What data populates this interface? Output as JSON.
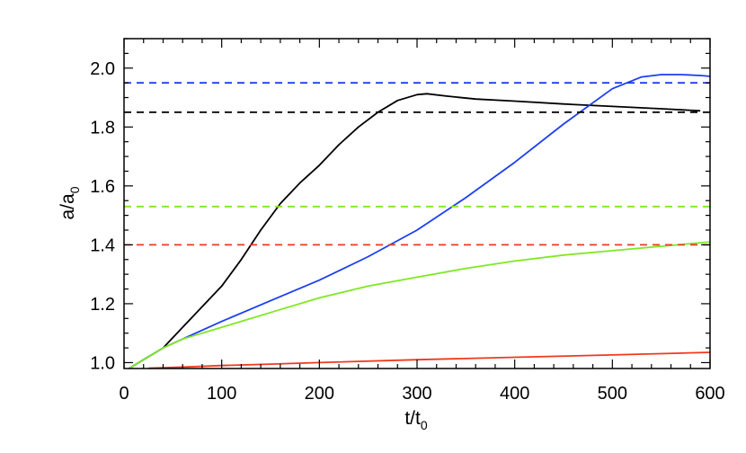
{
  "chart_data": {
    "type": "line",
    "title": "",
    "xlabel": {
      "base": "t/t",
      "sub": "0"
    },
    "ylabel": {
      "base": "a/a",
      "sub": "0"
    },
    "xlim": [
      0,
      600
    ],
    "ylim": [
      0.98,
      2.1
    ],
    "x_ticks": [
      0,
      100,
      200,
      300,
      400,
      500,
      600
    ],
    "y_ticks": [
      1.0,
      1.2,
      1.4,
      1.6,
      1.8,
      2.0
    ],
    "y_tick_labels": [
      "1.0",
      "1.2",
      "1.4",
      "1.6",
      "1.8",
      "2.0"
    ],
    "grid": false,
    "legend": "none",
    "series": [
      {
        "color": "#000000",
        "style": "solid",
        "x": [
          5,
          20,
          40,
          60,
          80,
          100,
          120,
          140,
          160,
          180,
          200,
          220,
          240,
          260,
          280,
          300,
          310,
          330,
          360,
          400,
          450,
          500,
          550,
          590
        ],
        "y": [
          0.98,
          1.01,
          1.05,
          1.12,
          1.19,
          1.26,
          1.35,
          1.45,
          1.54,
          1.61,
          1.67,
          1.74,
          1.8,
          1.85,
          1.89,
          1.91,
          1.913,
          1.905,
          1.895,
          1.888,
          1.878,
          1.87,
          1.862,
          1.855
        ]
      },
      {
        "color": "#1c3ff0",
        "style": "solid",
        "x": [
          5,
          20,
          40,
          60,
          100,
          150,
          200,
          250,
          300,
          350,
          400,
          450,
          500,
          530,
          550,
          570,
          590,
          600
        ],
        "y": [
          0.98,
          1.01,
          1.05,
          1.08,
          1.14,
          1.21,
          1.28,
          1.36,
          1.45,
          1.56,
          1.68,
          1.81,
          1.93,
          1.97,
          1.978,
          1.978,
          1.975,
          1.972
        ]
      },
      {
        "color": "#7fe823",
        "style": "solid",
        "x": [
          5,
          20,
          40,
          60,
          100,
          150,
          200,
          250,
          300,
          350,
          400,
          450,
          500,
          550,
          600
        ],
        "y": [
          0.98,
          1.01,
          1.05,
          1.08,
          1.12,
          1.17,
          1.22,
          1.26,
          1.29,
          1.32,
          1.345,
          1.365,
          1.38,
          1.395,
          1.41
        ]
      },
      {
        "color": "#ee3a1c",
        "style": "solid",
        "x": [
          25,
          60,
          100,
          150,
          200,
          300,
          400,
          500,
          600
        ],
        "y": [
          0.981,
          0.985,
          0.99,
          0.995,
          1.0,
          1.01,
          1.018,
          1.026,
          1.035
        ]
      },
      {
        "color": "#1c3ff0",
        "style": "dashed",
        "x": [
          0,
          600
        ],
        "y": [
          1.95,
          1.95
        ]
      },
      {
        "color": "#000000",
        "style": "dashed",
        "x": [
          0,
          600
        ],
        "y": [
          1.85,
          1.85
        ]
      },
      {
        "color": "#7fe823",
        "style": "dashed",
        "x": [
          0,
          600
        ],
        "y": [
          1.53,
          1.53
        ]
      },
      {
        "color": "#ee3a1c",
        "style": "dashed",
        "x": [
          0,
          600
        ],
        "y": [
          1.4,
          1.4
        ]
      }
    ]
  }
}
